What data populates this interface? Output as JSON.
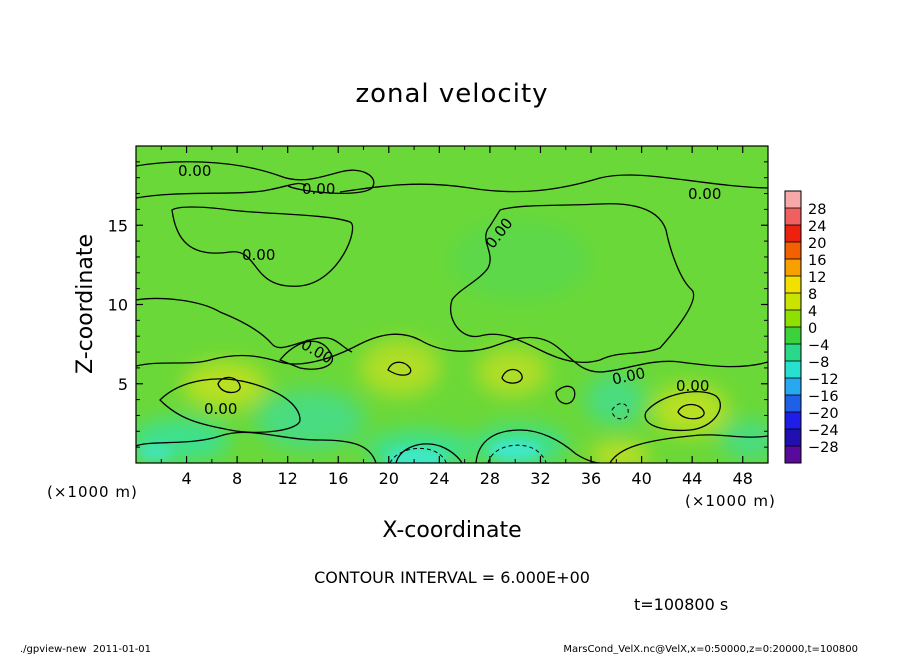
{
  "chart_data": {
    "type": "heatmap",
    "title": "zonal velocity",
    "xlabel": "X-coordinate",
    "ylabel": "Z-coordinate",
    "x_unit": "(×1000 m)",
    "y_unit": "(×1000 m)",
    "xlim": [
      0,
      50
    ],
    "ylim": [
      0,
      20
    ],
    "x_ticks": [
      "4",
      "8",
      "12",
      "16",
      "20",
      "24",
      "28",
      "32",
      "36",
      "40",
      "44",
      "48"
    ],
    "y_ticks": [
      "5",
      "10",
      "15"
    ],
    "colorbar": {
      "labels": [
        "28",
        "24",
        "20",
        "16",
        "12",
        "8",
        "4",
        "0",
        "−4",
        "−8",
        "−12",
        "−16",
        "−20",
        "−24",
        "−28"
      ],
      "colors": [
        "#f7a8a8",
        "#f06060",
        "#ee2010",
        "#f26000",
        "#f8a000",
        "#f2e000",
        "#c8e400",
        "#8ee000",
        "#3cd23c",
        "#2ad88a",
        "#28e0d0",
        "#28a8f0",
        "#1e60e8",
        "#1e1ee8",
        "#2010b0",
        "#5a0a9a"
      ]
    },
    "contour_labels": [
      "0.00",
      "0.00",
      "0.00",
      "0.00",
      "0.00",
      "0.00",
      "0.00",
      "0.00",
      "0.00",
      "0.00"
    ],
    "annotation": "CONTOUR INTERVAL = 6.000E+00",
    "time_label": "t=100800 s"
  },
  "footer": {
    "left": "./gpview-new  2011-01-01",
    "right": "MarsCond_VelX.nc@VelX,x=0:50000,z=0:20000,t=100800"
  },
  "colors": {
    "field_base": "#6ad838",
    "warm_blob": "#b8e024",
    "cool_blob": "#3ee08e",
    "cyan_blob": "#40e8c8"
  }
}
